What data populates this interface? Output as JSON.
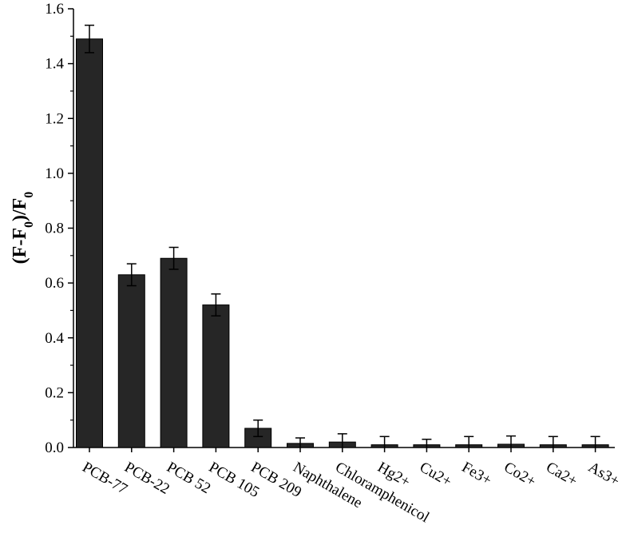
{
  "chart_data": {
    "type": "bar",
    "categories": [
      "PCB-77",
      "PCB-22",
      "PCB 52",
      "PCB 105",
      "PCB 209",
      "Naphthalene",
      "Chloramphenicol",
      "Hg2+",
      "Cu2+",
      "Fe3+",
      "Co2+",
      "Ca2+",
      "As3+"
    ],
    "values": [
      1.49,
      0.63,
      0.69,
      0.52,
      0.07,
      0.015,
      0.02,
      0.01,
      0.01,
      0.01,
      0.012,
      0.01,
      0.01
    ],
    "errors": [
      0.05,
      0.04,
      0.04,
      0.04,
      0.03,
      0.02,
      0.03,
      0.03,
      0.02,
      0.03,
      0.03,
      0.03,
      0.03
    ],
    "ylabel": "(F-F0)/F0",
    "ylim": [
      0,
      1.6
    ],
    "yticks": [
      "0.0",
      "0.2",
      "0.4",
      "0.6",
      "0.8",
      "1.0",
      "1.2",
      "1.4",
      "1.6"
    ],
    "bar_color": "#262626",
    "grid": false,
    "legend": false
  }
}
